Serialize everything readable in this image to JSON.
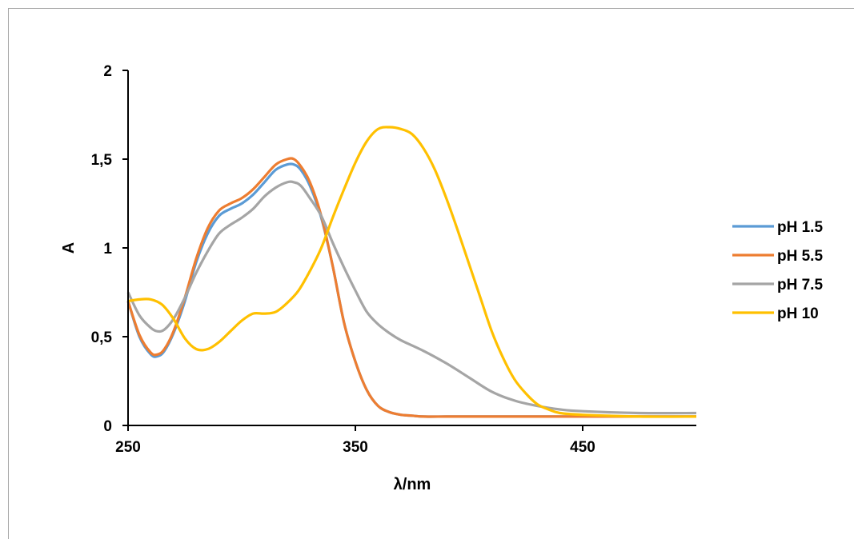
{
  "chart_data": {
    "type": "line",
    "title": "",
    "xlabel": "λ/nm",
    "ylabel": "A",
    "xlim": [
      250,
      500
    ],
    "ylim": [
      0,
      2
    ],
    "xticks": [
      250,
      350,
      450
    ],
    "xtick_labels": [
      "250",
      "350",
      "450"
    ],
    "yticks": [
      0,
      0.5,
      1,
      1.5,
      2
    ],
    "ytick_labels": [
      "0",
      "0,5",
      "1",
      "1,5",
      "2"
    ],
    "grid": false,
    "legend_position": "right",
    "series": [
      {
        "name": "pH 1.5",
        "color": "#5b9bd5",
        "x": [
          250,
          255,
          260,
          263,
          266,
          270,
          275,
          280,
          285,
          290,
          295,
          300,
          305,
          310,
          315,
          320,
          323,
          326,
          330,
          335,
          340,
          345,
          350,
          355,
          360,
          365,
          370,
          375,
          380,
          390,
          400,
          450,
          500
        ],
        "y": [
          0.7,
          0.5,
          0.4,
          0.39,
          0.42,
          0.52,
          0.7,
          0.92,
          1.08,
          1.18,
          1.22,
          1.25,
          1.3,
          1.37,
          1.44,
          1.47,
          1.47,
          1.44,
          1.35,
          1.17,
          0.9,
          0.58,
          0.36,
          0.2,
          0.11,
          0.075,
          0.06,
          0.055,
          0.05,
          0.05,
          0.05,
          0.05,
          0.05
        ]
      },
      {
        "name": "pH 5.5",
        "color": "#ed7d31",
        "x": [
          250,
          255,
          260,
          263,
          266,
          270,
          275,
          280,
          285,
          290,
          295,
          300,
          305,
          310,
          315,
          320,
          323,
          326,
          330,
          335,
          340,
          345,
          350,
          355,
          360,
          365,
          370,
          375,
          380,
          390,
          400,
          450,
          500
        ],
        "y": [
          0.7,
          0.51,
          0.41,
          0.4,
          0.43,
          0.53,
          0.72,
          0.94,
          1.11,
          1.21,
          1.25,
          1.28,
          1.33,
          1.4,
          1.47,
          1.5,
          1.5,
          1.46,
          1.37,
          1.18,
          0.9,
          0.58,
          0.36,
          0.2,
          0.11,
          0.075,
          0.06,
          0.055,
          0.05,
          0.05,
          0.05,
          0.05,
          0.05
        ]
      },
      {
        "name": "pH 7.5",
        "color": "#a5a5a5",
        "x": [
          250,
          255,
          260,
          263,
          266,
          270,
          275,
          280,
          285,
          290,
          295,
          300,
          305,
          310,
          315,
          320,
          323,
          326,
          330,
          335,
          340,
          345,
          350,
          355,
          360,
          365,
          370,
          380,
          390,
          400,
          410,
          420,
          430,
          440,
          450,
          475,
          500
        ],
        "y": [
          0.75,
          0.62,
          0.55,
          0.53,
          0.54,
          0.6,
          0.72,
          0.86,
          0.98,
          1.08,
          1.13,
          1.17,
          1.22,
          1.29,
          1.34,
          1.37,
          1.37,
          1.35,
          1.28,
          1.18,
          1.03,
          0.89,
          0.76,
          0.64,
          0.57,
          0.52,
          0.48,
          0.42,
          0.35,
          0.27,
          0.19,
          0.14,
          0.11,
          0.09,
          0.08,
          0.07,
          0.07
        ]
      },
      {
        "name": "pH 10",
        "color": "#ffc000",
        "x": [
          250,
          255,
          260,
          265,
          270,
          275,
          280,
          285,
          290,
          295,
          300,
          305,
          310,
          315,
          320,
          325,
          330,
          335,
          340,
          345,
          350,
          355,
          360,
          365,
          370,
          375,
          380,
          385,
          390,
          395,
          400,
          405,
          410,
          415,
          420,
          425,
          430,
          435,
          440,
          450,
          475,
          500
        ],
        "y": [
          0.7,
          0.71,
          0.71,
          0.68,
          0.6,
          0.49,
          0.43,
          0.43,
          0.47,
          0.53,
          0.59,
          0.63,
          0.63,
          0.64,
          0.69,
          0.76,
          0.87,
          1.0,
          1.17,
          1.33,
          1.48,
          1.6,
          1.67,
          1.68,
          1.67,
          1.64,
          1.56,
          1.44,
          1.28,
          1.1,
          0.91,
          0.72,
          0.53,
          0.38,
          0.26,
          0.18,
          0.12,
          0.09,
          0.07,
          0.06,
          0.05,
          0.05
        ]
      }
    ]
  }
}
